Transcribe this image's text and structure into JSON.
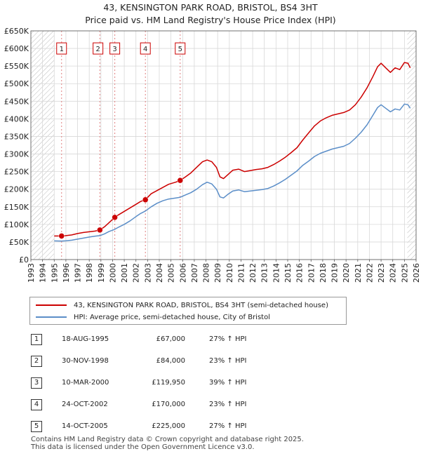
{
  "chart_data": {
    "type": "line",
    "title": "43, KENSINGTON PARK ROAD, BRISTOL, BS4 3HT",
    "subtitle": "Price paid vs. HM Land Registry's House Price Index (HPI)",
    "xlabel": "",
    "ylabel": "",
    "xlim": [
      1993,
      2026
    ],
    "ylim": [
      0,
      650000
    ],
    "x_ticks": [
      "1993",
      "1994",
      "1995",
      "1996",
      "1997",
      "1998",
      "1999",
      "2000",
      "2001",
      "2002",
      "2003",
      "2004",
      "2005",
      "2006",
      "2007",
      "2008",
      "2009",
      "2010",
      "2011",
      "2012",
      "2013",
      "2014",
      "2015",
      "2016",
      "2017",
      "2018",
      "2019",
      "2020",
      "2021",
      "2022",
      "2023",
      "2024",
      "2025",
      "2026"
    ],
    "y_ticks": [
      {
        "value": 0,
        "label": "£0"
      },
      {
        "value": 50000,
        "label": "£50K"
      },
      {
        "value": 100000,
        "label": "£100K"
      },
      {
        "value": 150000,
        "label": "£150K"
      },
      {
        "value": 200000,
        "label": "£200K"
      },
      {
        "value": 250000,
        "label": "£250K"
      },
      {
        "value": 300000,
        "label": "£300K"
      },
      {
        "value": 350000,
        "label": "£350K"
      },
      {
        "value": 400000,
        "label": "£400K"
      },
      {
        "value": 450000,
        "label": "£450K"
      },
      {
        "value": 500000,
        "label": "£500K"
      },
      {
        "value": 550000,
        "label": "£550K"
      },
      {
        "value": 600000,
        "label": "£600K"
      },
      {
        "value": 650000,
        "label": "£650K"
      }
    ],
    "hatched_ranges": [
      [
        1993,
        1995.0
      ],
      [
        2025.25,
        2026
      ]
    ],
    "series": [
      {
        "name": "43, KENSINGTON PARK ROAD, BRISTOL, BS4 3HT (semi-detached house)",
        "color": "#cc0000",
        "points": [
          [
            1995.0,
            67000
          ],
          [
            1995.63,
            67000
          ],
          [
            1996.0,
            68000
          ],
          [
            1996.5,
            70000
          ],
          [
            1997.0,
            74000
          ],
          [
            1997.5,
            77000
          ],
          [
            1998.0,
            79000
          ],
          [
            1998.5,
            81000
          ],
          [
            1998.91,
            84000
          ],
          [
            1999.3,
            93000
          ],
          [
            1999.7,
            105000
          ],
          [
            2000.19,
            119950
          ],
          [
            2000.5,
            127000
          ],
          [
            2001.0,
            137000
          ],
          [
            2001.5,
            147000
          ],
          [
            2002.0,
            157000
          ],
          [
            2002.4,
            165000
          ],
          [
            2002.81,
            170000
          ],
          [
            2003.3,
            187000
          ],
          [
            2003.8,
            196000
          ],
          [
            2004.3,
            205000
          ],
          [
            2004.8,
            214000
          ],
          [
            2005.4,
            220000
          ],
          [
            2005.79,
            225000
          ],
          [
            2006.2,
            234000
          ],
          [
            2006.7,
            246000
          ],
          [
            2007.2,
            262000
          ],
          [
            2007.7,
            278000
          ],
          [
            2008.1,
            283000
          ],
          [
            2008.5,
            278000
          ],
          [
            2008.9,
            262000
          ],
          [
            2009.2,
            235000
          ],
          [
            2009.5,
            230000
          ],
          [
            2009.9,
            242000
          ],
          [
            2010.3,
            254000
          ],
          [
            2010.8,
            257000
          ],
          [
            2011.3,
            250000
          ],
          [
            2011.8,
            253000
          ],
          [
            2012.3,
            256000
          ],
          [
            2012.8,
            258000
          ],
          [
            2013.3,
            262000
          ],
          [
            2013.8,
            270000
          ],
          [
            2014.3,
            280000
          ],
          [
            2014.8,
            291000
          ],
          [
            2015.3,
            304000
          ],
          [
            2015.8,
            318000
          ],
          [
            2016.3,
            340000
          ],
          [
            2016.8,
            360000
          ],
          [
            2017.3,
            380000
          ],
          [
            2017.8,
            394000
          ],
          [
            2018.3,
            403000
          ],
          [
            2018.8,
            410000
          ],
          [
            2019.3,
            414000
          ],
          [
            2019.8,
            418000
          ],
          [
            2020.3,
            425000
          ],
          [
            2020.8,
            440000
          ],
          [
            2021.3,
            462000
          ],
          [
            2021.8,
            488000
          ],
          [
            2022.3,
            520000
          ],
          [
            2022.7,
            548000
          ],
          [
            2023.0,
            558000
          ],
          [
            2023.4,
            545000
          ],
          [
            2023.8,
            532000
          ],
          [
            2024.2,
            545000
          ],
          [
            2024.6,
            540000
          ],
          [
            2025.0,
            560000
          ],
          [
            2025.3,
            558000
          ],
          [
            2025.5,
            545000
          ]
        ]
      },
      {
        "name": "HPI: Average price, semi-detached house, City of Bristol",
        "color": "#5b8ec8",
        "points": [
          [
            1995.0,
            53000
          ],
          [
            1995.63,
            52700
          ],
          [
            1996.0,
            53500
          ],
          [
            1996.5,
            55000
          ],
          [
            1997.0,
            58000
          ],
          [
            1997.5,
            61000
          ],
          [
            1998.0,
            64000
          ],
          [
            1998.5,
            66500
          ],
          [
            1998.91,
            68000
          ],
          [
            1999.3,
            73000
          ],
          [
            1999.7,
            80000
          ],
          [
            2000.19,
            86000
          ],
          [
            2000.5,
            92000
          ],
          [
            2001.0,
            100000
          ],
          [
            2001.5,
            110000
          ],
          [
            2002.0,
            122000
          ],
          [
            2002.4,
            131000
          ],
          [
            2002.81,
            138000
          ],
          [
            2003.3,
            150000
          ],
          [
            2003.8,
            160000
          ],
          [
            2004.3,
            167000
          ],
          [
            2004.8,
            172000
          ],
          [
            2005.4,
            175000
          ],
          [
            2005.79,
            177000
          ],
          [
            2006.2,
            183000
          ],
          [
            2006.7,
            190000
          ],
          [
            2007.2,
            200000
          ],
          [
            2007.7,
            213000
          ],
          [
            2008.1,
            220000
          ],
          [
            2008.5,
            215000
          ],
          [
            2008.9,
            200000
          ],
          [
            2009.2,
            178000
          ],
          [
            2009.5,
            175000
          ],
          [
            2009.9,
            186000
          ],
          [
            2010.3,
            195000
          ],
          [
            2010.8,
            198000
          ],
          [
            2011.3,
            193000
          ],
          [
            2011.8,
            195000
          ],
          [
            2012.3,
            197000
          ],
          [
            2012.8,
            199000
          ],
          [
            2013.3,
            202000
          ],
          [
            2013.8,
            209000
          ],
          [
            2014.3,
            218000
          ],
          [
            2014.8,
            228000
          ],
          [
            2015.3,
            240000
          ],
          [
            2015.8,
            252000
          ],
          [
            2016.3,
            268000
          ],
          [
            2016.8,
            280000
          ],
          [
            2017.3,
            293000
          ],
          [
            2017.8,
            302000
          ],
          [
            2018.3,
            308000
          ],
          [
            2018.8,
            314000
          ],
          [
            2019.3,
            318000
          ],
          [
            2019.8,
            322000
          ],
          [
            2020.3,
            330000
          ],
          [
            2020.8,
            345000
          ],
          [
            2021.3,
            362000
          ],
          [
            2021.8,
            383000
          ],
          [
            2022.3,
            410000
          ],
          [
            2022.7,
            432000
          ],
          [
            2023.0,
            440000
          ],
          [
            2023.4,
            430000
          ],
          [
            2023.8,
            420000
          ],
          [
            2024.2,
            428000
          ],
          [
            2024.6,
            425000
          ],
          [
            2025.0,
            442000
          ],
          [
            2025.3,
            440000
          ],
          [
            2025.5,
            430000
          ]
        ]
      }
    ],
    "sales": [
      {
        "num": "1",
        "x": 1995.63,
        "price": 67000,
        "label_x": 1995.63
      },
      {
        "num": "2",
        "x": 1998.91,
        "price": 84000,
        "label_x": 1998.75
      },
      {
        "num": "3",
        "x": 2000.19,
        "price": 119950,
        "label_x": 2000.19
      },
      {
        "num": "4",
        "x": 2002.81,
        "price": 170000,
        "label_x": 2002.81
      },
      {
        "num": "5",
        "x": 2005.79,
        "price": 225000,
        "label_x": 2005.79
      }
    ]
  },
  "title": {
    "line1": "43, KENSINGTON PARK ROAD, BRISTOL, BS4 3HT",
    "line2": "Price paid vs. HM Land Registry's House Price Index (HPI)"
  },
  "legend": {
    "property": "43, KENSINGTON PARK ROAD, BRISTOL, BS4 3HT (semi-detached house)",
    "hpi": "HPI: Average price, semi-detached house, City of Bristol"
  },
  "sales_table": [
    {
      "num": "1",
      "date": "18-AUG-1995",
      "price": "£67,000",
      "hpi": "27% ↑ HPI"
    },
    {
      "num": "2",
      "date": "30-NOV-1998",
      "price": "£84,000",
      "hpi": "23% ↑ HPI"
    },
    {
      "num": "3",
      "date": "10-MAR-2000",
      "price": "£119,950",
      "hpi": "39% ↑ HPI"
    },
    {
      "num": "4",
      "date": "24-OCT-2002",
      "price": "£170,000",
      "hpi": "23% ↑ HPI"
    },
    {
      "num": "5",
      "date": "14-OCT-2005",
      "price": "£225,000",
      "hpi": "27% ↑ HPI"
    }
  ],
  "footer": {
    "line1": "Contains HM Land Registry data © Crown copyright and database right 2025.",
    "line2": "This data is licensed under the Open Government Licence v3.0."
  }
}
